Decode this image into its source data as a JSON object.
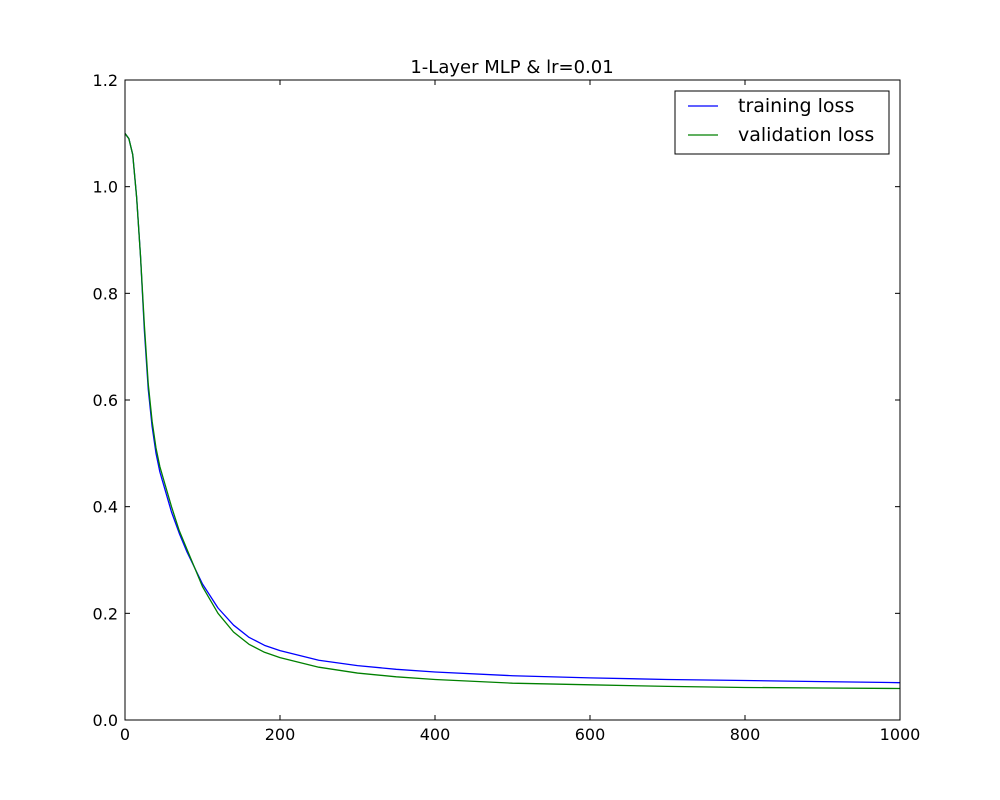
{
  "chart_data": {
    "type": "line",
    "title": "1-Layer MLP & lr=0.01",
    "xlabel": "",
    "ylabel": "",
    "xlim": [
      0,
      1000
    ],
    "ylim": [
      0,
      1.2
    ],
    "xticks": [
      0,
      200,
      400,
      600,
      800,
      1000
    ],
    "xtick_labels": [
      "0",
      "200",
      "400",
      "600",
      "800",
      "1000"
    ],
    "yticks": [
      0,
      0.2,
      0.4,
      0.6,
      0.8,
      1.0,
      1.2
    ],
    "ytick_labels": [
      "0.0",
      "0.2",
      "0.4",
      "0.6",
      "0.8",
      "1.0",
      "1.2"
    ],
    "grid": false,
    "legend_position": "top-right",
    "series": [
      {
        "name": "training loss",
        "color": "#0000ff",
        "x": [
          0,
          5,
          10,
          15,
          20,
          25,
          30,
          35,
          40,
          45,
          50,
          60,
          70,
          80,
          90,
          100,
          120,
          140,
          160,
          180,
          200,
          250,
          300,
          350,
          400,
          500,
          600,
          700,
          800,
          900,
          1000
        ],
        "y": [
          1.1,
          1.09,
          1.06,
          0.98,
          0.87,
          0.73,
          0.62,
          0.55,
          0.5,
          0.465,
          0.44,
          0.39,
          0.35,
          0.315,
          0.285,
          0.255,
          0.21,
          0.178,
          0.155,
          0.14,
          0.13,
          0.112,
          0.102,
          0.095,
          0.09,
          0.083,
          0.079,
          0.076,
          0.074,
          0.072,
          0.07
        ]
      },
      {
        "name": "validation loss",
        "color": "#008000",
        "x": [
          0,
          5,
          10,
          15,
          20,
          25,
          30,
          35,
          40,
          45,
          50,
          60,
          70,
          80,
          90,
          100,
          120,
          140,
          160,
          180,
          200,
          250,
          300,
          350,
          400,
          500,
          600,
          700,
          800,
          900,
          1000
        ],
        "y": [
          1.1,
          1.09,
          1.06,
          0.98,
          0.87,
          0.74,
          0.63,
          0.56,
          0.51,
          0.475,
          0.45,
          0.4,
          0.355,
          0.32,
          0.285,
          0.25,
          0.2,
          0.165,
          0.142,
          0.127,
          0.117,
          0.099,
          0.088,
          0.081,
          0.076,
          0.069,
          0.066,
          0.063,
          0.061,
          0.06,
          0.059
        ]
      }
    ]
  }
}
